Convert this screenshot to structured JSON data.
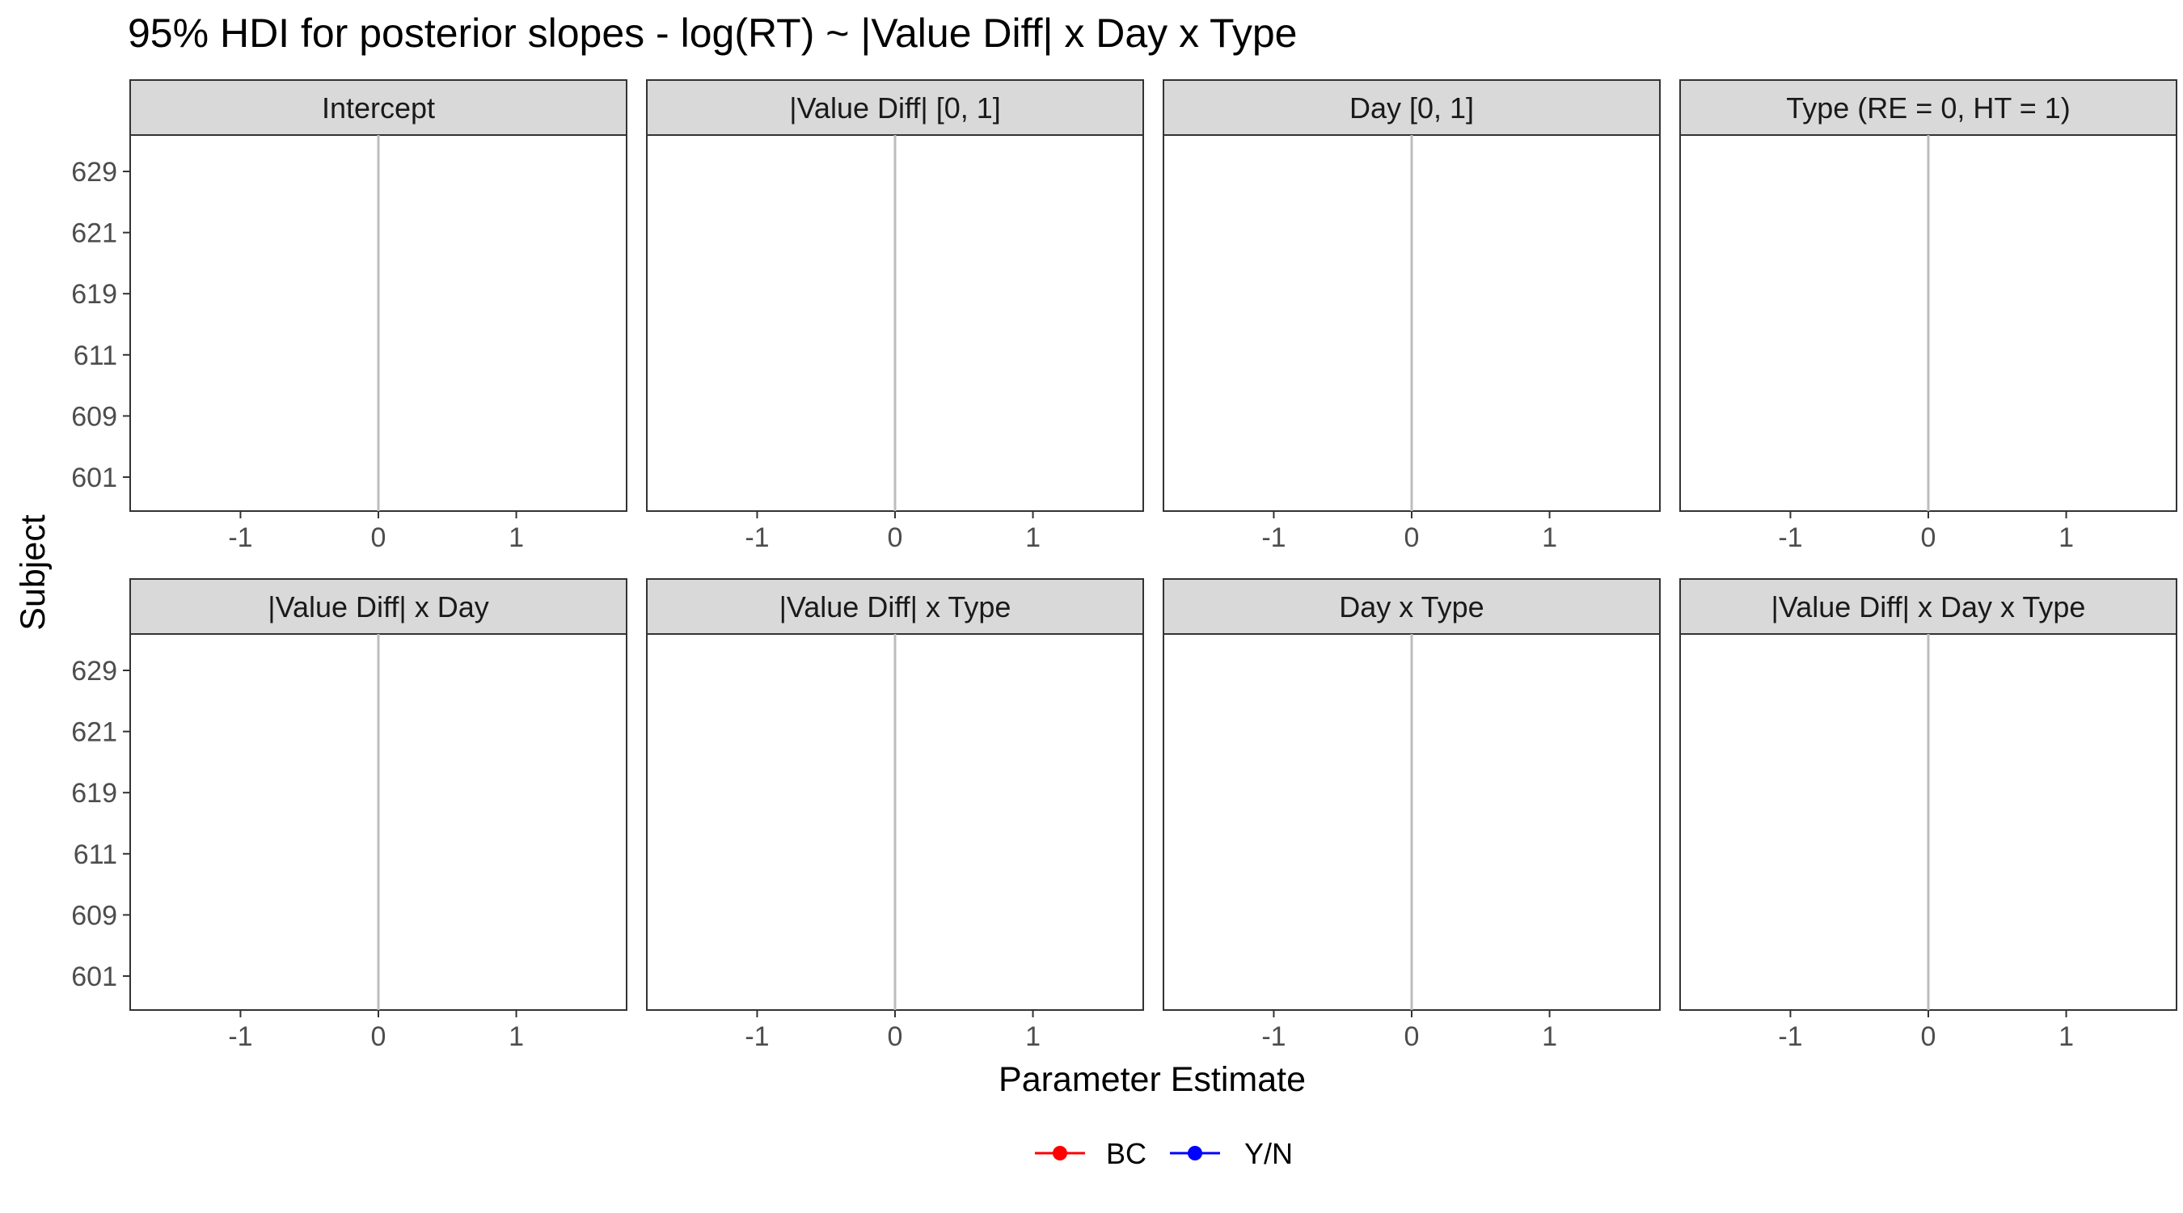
{
  "chart_data": {
    "type": "scatter",
    "title": "95% HDI for posterior slopes - log(RT) ~ |Value Diff| x Day x Type",
    "xlabel": "Parameter Estimate",
    "ylabel": "Subject",
    "xlim": [
      -1.8,
      1.8
    ],
    "x_ticks": [
      "-1",
      "0",
      "1"
    ],
    "x_tick_values": [
      -1,
      0,
      1
    ],
    "y_categories": [
      "601",
      "609",
      "611",
      "619",
      "621",
      "629"
    ],
    "reference_line_x": 0,
    "grid": false,
    "legend_position": "bottom",
    "panels": [
      {
        "label": "Intercept"
      },
      {
        "label": "|Value Diff| [0, 1]"
      },
      {
        "label": "Day [0, 1]"
      },
      {
        "label": "Type (RE = 0, HT = 1)"
      },
      {
        "label": "|Value Diff| x Day"
      },
      {
        "label": "|Value Diff| x Type"
      },
      {
        "label": "Day x Type"
      },
      {
        "label": "|Value Diff| x Day x Type"
      }
    ],
    "series": [
      {
        "name": "BC",
        "color": "#ff0000",
        "values": []
      },
      {
        "name": "Y/N",
        "color": "#0000ff",
        "values": []
      }
    ]
  }
}
